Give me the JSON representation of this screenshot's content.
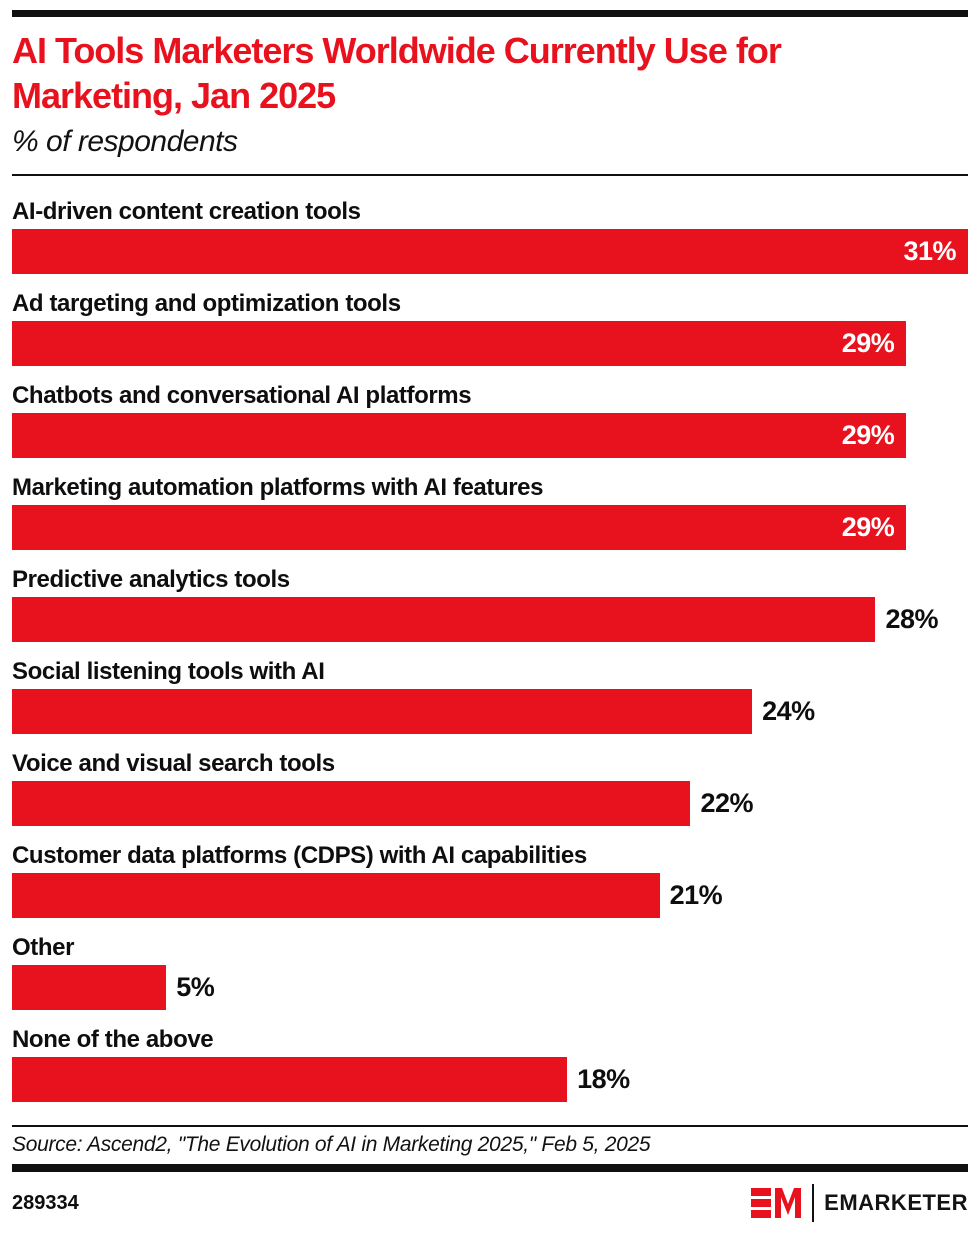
{
  "header": {
    "title_line1": "AI Tools Marketers Worldwide Currently Use for",
    "title_line2": "Marketing, Jan 2025",
    "subtitle": "% of respondents"
  },
  "chart_data": {
    "type": "bar",
    "orientation": "horizontal",
    "title": "AI Tools Marketers Worldwide Currently Use for Marketing, Jan 2025",
    "subtitle": "% of respondents",
    "unit": "% of respondents",
    "xlim": [
      0,
      31
    ],
    "grid": false,
    "legend": false,
    "bar_color": "#e8121e",
    "value_label_color_inside": "#ffffff",
    "value_label_color_outside": "#0e0e0e",
    "categories": [
      "AI-driven content creation tools",
      "Ad targeting and optimization tools",
      "Chatbots and conversational AI platforms",
      "Marketing automation platforms with AI features",
      "Predictive analytics tools",
      "Social listening tools with AI",
      "Voice and visual search tools",
      "Customer data platforms (CDPS) with AI capabilities",
      "Other",
      "None of the above"
    ],
    "values": [
      31,
      29,
      29,
      29,
      28,
      24,
      22,
      21,
      5,
      18
    ],
    "bars": [
      {
        "category": "AI-driven content creation tools",
        "value": 31,
        "display": "31%",
        "label_inside": true
      },
      {
        "category": "Ad targeting and optimization tools",
        "value": 29,
        "display": "29%",
        "label_inside": true
      },
      {
        "category": "Chatbots and conversational AI platforms",
        "value": 29,
        "display": "29%",
        "label_inside": true
      },
      {
        "category": "Marketing automation platforms with AI features",
        "value": 29,
        "display": "29%",
        "label_inside": true
      },
      {
        "category": "Predictive analytics tools",
        "value": 28,
        "display": "28%",
        "label_inside": false
      },
      {
        "category": "Social listening tools with AI",
        "value": 24,
        "display": "24%",
        "label_inside": false
      },
      {
        "category": "Voice and visual search tools",
        "value": 22,
        "display": "22%",
        "label_inside": false
      },
      {
        "category": "Customer data platforms (CDPS) with AI capabilities",
        "value": 21,
        "display": "21%",
        "label_inside": false
      },
      {
        "category": "Other",
        "value": 5,
        "display": "5%",
        "label_inside": false
      },
      {
        "category": "None of the above",
        "value": 18,
        "display": "18%",
        "label_inside": false
      }
    ]
  },
  "footer": {
    "source": "Source: Ascend2, \"The Evolution of AI in Marketing 2025,\" Feb 5, 2025",
    "chart_id": "289334",
    "brand_name": "EMARKETER",
    "brand_red": "#e8121e"
  }
}
